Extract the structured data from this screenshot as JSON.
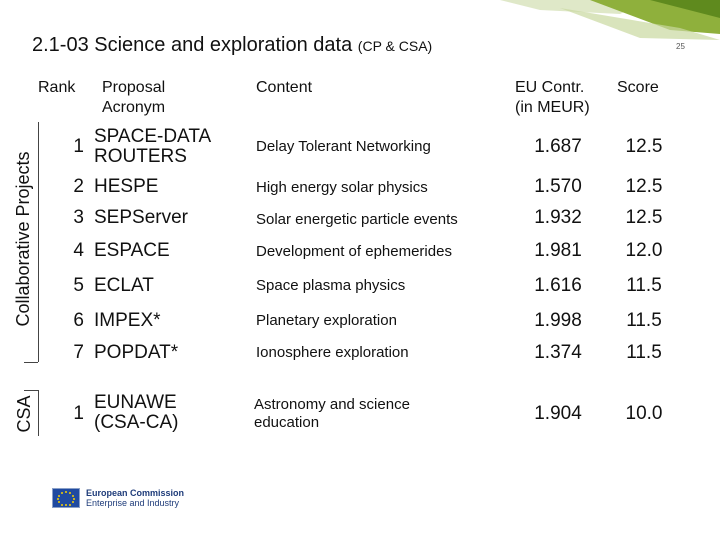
{
  "header": {
    "title": "2.1-03 Science and exploration data",
    "subtitle": "(CP & CSA)",
    "page_number": "25"
  },
  "columns": {
    "rank": "Rank",
    "acronym_line1": "Proposal",
    "acronym_line2": "Acronym",
    "content": "Content",
    "contribution_line1": "EU Contr.",
    "contribution_line2": "(in MEUR)",
    "score": "Score"
  },
  "groups": {
    "collaborative": "Collaborative Projects",
    "csa": "CSA"
  },
  "rows": [
    {
      "rank": "1",
      "acronym": "SPACE-DATA ROUTERS",
      "acronym_l1": "SPACE-DATA",
      "acronym_l2": "ROUTERS",
      "content": "Delay Tolerant Networking",
      "contribution": "1.687",
      "score": "12.5"
    },
    {
      "rank": "2",
      "acronym": "HESPE",
      "content": "High energy solar physics",
      "contribution": "1.570",
      "score": "12.5"
    },
    {
      "rank": "3",
      "acronym": "SEPServer",
      "content": "Solar energetic particle events",
      "contribution": "1.932",
      "score": "12.5"
    },
    {
      "rank": "4",
      "acronym": "ESPACE",
      "content": "Development of ephemerides",
      "contribution": "1.981",
      "score": "12.0"
    },
    {
      "rank": "5",
      "acronym": "ECLAT",
      "content": "Space plasma physics",
      "contribution": "1.616",
      "score": "11.5"
    },
    {
      "rank": "6",
      "acronym": "IMPEX*",
      "content": "Planetary exploration",
      "contribution": "1.998",
      "score": "11.5"
    },
    {
      "rank": "7",
      "acronym": "POPDAT*",
      "content": "Ionosphere exploration",
      "contribution": "1.374",
      "score": "11.5"
    }
  ],
  "csa_rows": [
    {
      "rank": "1",
      "acronym_l1": "EUNAWE",
      "acronym_l2": "(CSA-CA)",
      "content_l1": "Astronomy and science",
      "content_l2": "education",
      "contribution": "1.904",
      "score": "10.0"
    }
  ],
  "logo": {
    "line1": "European Commission",
    "line2": "Enterprise and Industry"
  }
}
